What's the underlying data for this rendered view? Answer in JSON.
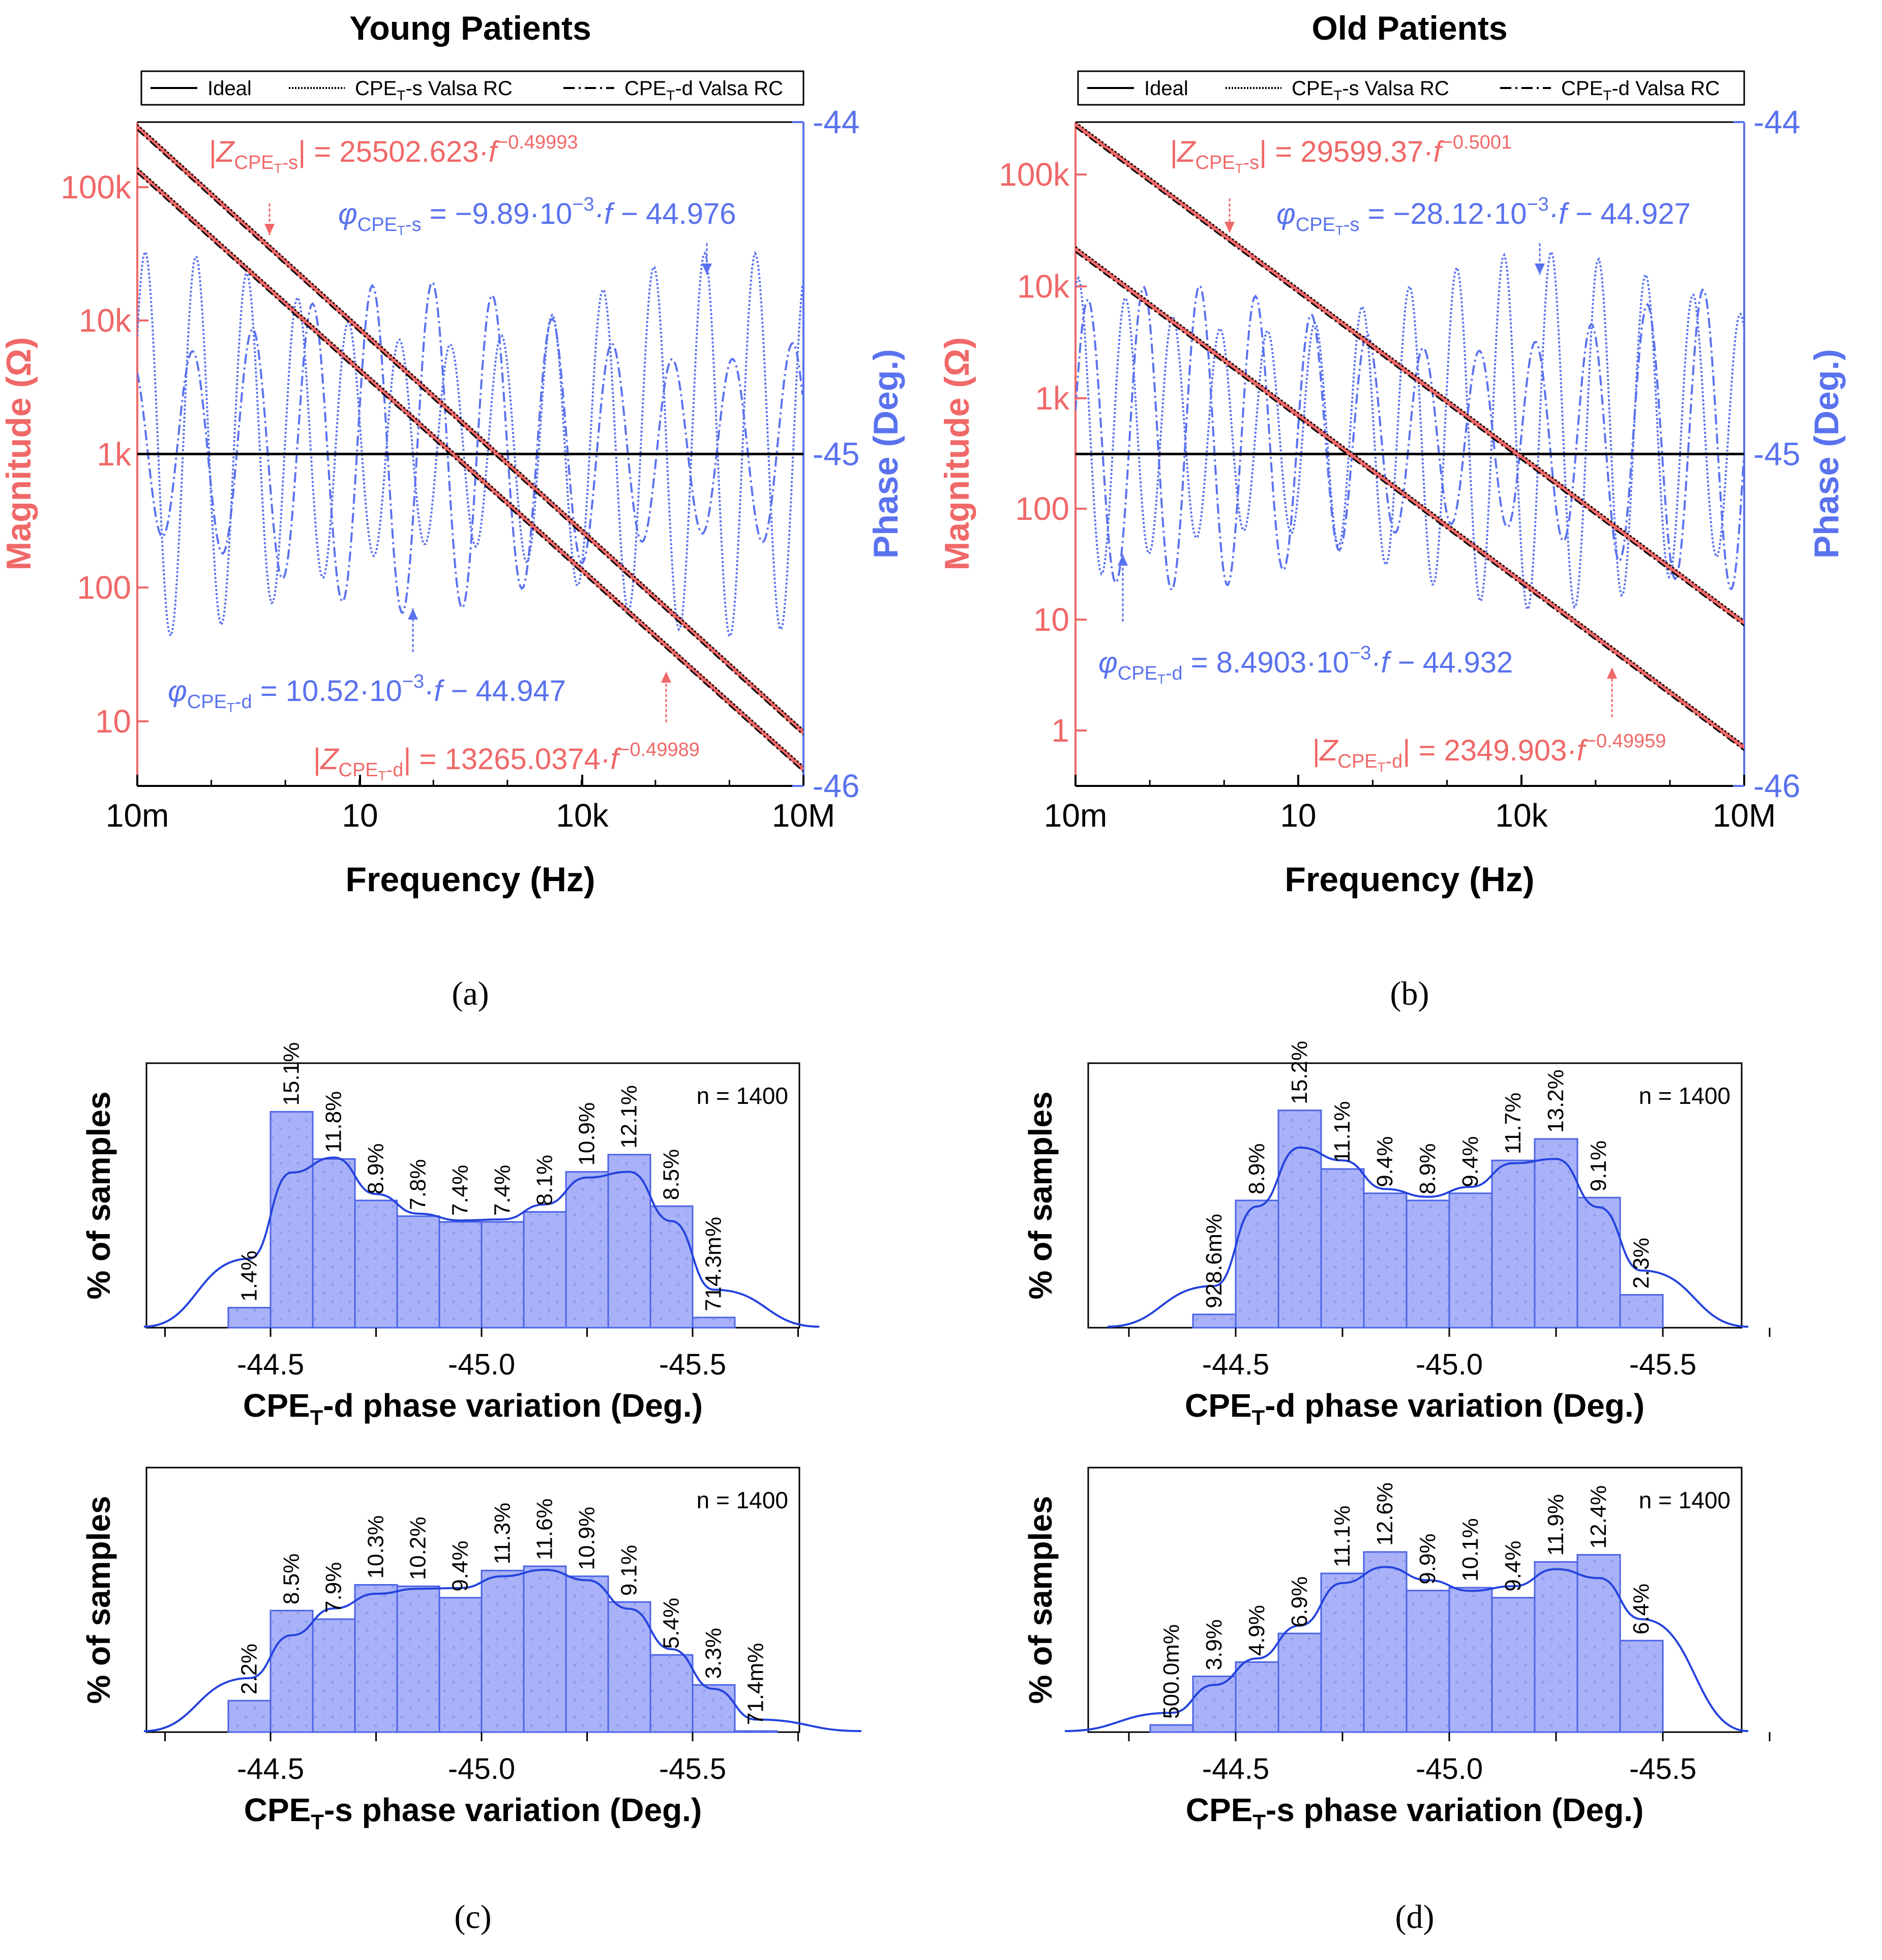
{
  "colors": {
    "magnitude": "#f06868",
    "phase": "#5a72ee",
    "ideal": "#000000",
    "bar_fill": "#a9b2f8",
    "bar_edge": "#4b63e6",
    "kde": "#2443dd"
  },
  "legend": {
    "ideal": "Ideal",
    "s_prefix": "CPE",
    "s_sub": "T",
    "s_suffix": "-s Valsa RC",
    "d_prefix": "CPE",
    "d_sub": "T",
    "d_suffix": "-d Valsa RC"
  },
  "panels": [
    {
      "id": "a",
      "caption": "(a)",
      "title": "Young Patients",
      "xlabel": "Frequency (Hz)",
      "ylabel_left": "Magnitude (Ω)",
      "ylabel_right": "Phase (Deg.)",
      "x_ticks": [
        "10m",
        "10",
        "10k",
        "10M"
      ],
      "y_left_ticks": [
        "10",
        "100",
        "1k",
        "10k",
        "100k"
      ],
      "y_right_ticks": [
        "-44",
        "-45",
        "-46"
      ],
      "ann_mag_s": {
        "coef": "25502.623",
        "exp": "−0.49993"
      },
      "ann_phase_s": {
        "slope": "−9.89",
        "intercept": "44.976"
      },
      "ann_phase_d": {
        "slope": "10.52",
        "intercept": "44.947"
      },
      "ann_mag_d": {
        "coef": "13265.0374",
        "exp": "−0.49989"
      }
    },
    {
      "id": "b",
      "caption": "(b)",
      "title": "Old Patients",
      "xlabel": "Frequency (Hz)",
      "ylabel_left": "Magnitude (Ω)",
      "ylabel_right": "Phase (Deg.)",
      "x_ticks": [
        "10m",
        "10",
        "10k",
        "10M"
      ],
      "y_left_ticks": [
        "1",
        "10",
        "100",
        "1k",
        "10k",
        "100k"
      ],
      "y_right_ticks": [
        "-44",
        "-45",
        "-46"
      ],
      "ann_mag_s": {
        "coef": "29599.37",
        "exp": "−0.5001"
      },
      "ann_phase_s": {
        "slope": "−28.12",
        "intercept": "44.927"
      },
      "ann_phase_d": {
        "slope": "8.4903",
        "intercept": "44.932"
      },
      "ann_mag_d": {
        "coef": "2349.903",
        "exp": "−0.49959"
      }
    }
  ],
  "annotation_parts": {
    "z_s_prefix": "|Z",
    "z_sub": "CPE",
    "z_subsub": "T",
    "z_s_suffix": "-s",
    "z_d_suffix": "-d",
    "z_eq": "| = ",
    "z_f": "·f",
    "phi": "φ",
    "phi_sub": "CPE",
    "phi_subsub": "T",
    "phi_s_suffix": "-s",
    "phi_d_suffix": "-d",
    "phi_eq": " = ",
    "phi_mid": "·10",
    "phi_exp": "−3",
    "phi_f": "·f − "
  },
  "hist_common": {
    "ylabel": "% of samples",
    "n_label": "n = 1400",
    "x_ticks": [
      "-44.5",
      "-45.0",
      "-45.5"
    ]
  },
  "histograms": [
    {
      "id": "c-top",
      "xlabel_prefix": "CPE",
      "xlabel_sub": "T",
      "xlabel_suffix": "-d phase variation (Deg.)",
      "labels": [
        "1.4%",
        "15.1%",
        "11.8%",
        "8.9%",
        "7.8%",
        "7.4%",
        "7.4%",
        "8.1%",
        "10.9%",
        "12.1%",
        "8.5%",
        "714.3m%"
      ]
    },
    {
      "id": "d-top",
      "xlabel_prefix": "CPE",
      "xlabel_sub": "T",
      "xlabel_suffix": "-d phase variation (Deg.)",
      "labels": [
        "928.6m%",
        "8.9%",
        "15.2%",
        "11.1%",
        "9.4%",
        "8.9%",
        "9.4%",
        "11.7%",
        "13.2%",
        "9.1%",
        "2.3%"
      ]
    },
    {
      "id": "c-bottom",
      "xlabel_prefix": "CPE",
      "xlabel_sub": "T",
      "xlabel_suffix": "-s phase variation (Deg.)",
      "labels": [
        "2.2%",
        "8.5%",
        "7.9%",
        "10.3%",
        "10.2%",
        "9.4%",
        "11.3%",
        "11.6%",
        "10.9%",
        "9.1%",
        "5.4%",
        "3.3%",
        "71.4m%"
      ]
    },
    {
      "id": "d-bottom",
      "xlabel_prefix": "CPE",
      "xlabel_sub": "T",
      "xlabel_suffix": "-s phase variation (Deg.)",
      "labels": [
        "500.0m%",
        "3.9%",
        "4.9%",
        "6.9%",
        "11.1%",
        "12.6%",
        "9.9%",
        "10.1%",
        "9.4%",
        "11.9%",
        "12.4%",
        "6.4%"
      ]
    }
  ],
  "captions_bottom": [
    "(c)",
    "(d)"
  ],
  "chart_data": [
    {
      "type": "line",
      "panel": "a",
      "x_scale": "log",
      "x_range": [
        "10m",
        "10M"
      ],
      "y_left_scale": "log",
      "y_right_range": [
        -46,
        -44
      ],
      "series": [
        {
          "name": "Ideal",
          "axis": "right",
          "equation": "-45 (constant)"
        },
        {
          "name": "CPE_T-s Valsa RC",
          "axis": "left",
          "equation": "|Z| = 25502.623·f^−0.49993"
        },
        {
          "name": "CPE_T-d Valsa RC",
          "axis": "left",
          "equation": "|Z| = 13265.0374·f^−0.49989"
        },
        {
          "name": "CPE_T-s Valsa RC",
          "axis": "right",
          "equation": "φ = −9.89·10^−3·f − 44.976"
        },
        {
          "name": "CPE_T-d Valsa RC",
          "axis": "right",
          "equation": "φ = 10.52·10^−3·f − 44.947"
        }
      ]
    },
    {
      "type": "line",
      "panel": "b",
      "x_scale": "log",
      "x_range": [
        "10m",
        "10M"
      ],
      "y_left_scale": "log",
      "y_right_range": [
        -46,
        -44
      ],
      "series": [
        {
          "name": "Ideal",
          "axis": "right",
          "equation": "-45 (constant)"
        },
        {
          "name": "CPE_T-s Valsa RC",
          "axis": "left",
          "equation": "|Z| = 29599.37·f^−0.5001"
        },
        {
          "name": "CPE_T-d Valsa RC",
          "axis": "left",
          "equation": "|Z| = 2349.903·f^−0.49959"
        },
        {
          "name": "CPE_T-s Valsa RC",
          "axis": "right",
          "equation": "φ = −28.12·10^−3·f − 44.927"
        },
        {
          "name": "CPE_T-d Valsa RC",
          "axis": "right",
          "equation": "φ = 8.4903·10^−3·f − 44.932"
        }
      ]
    },
    {
      "type": "bar",
      "panel": "c-top",
      "x_range": [
        -44.25,
        -45.75
      ],
      "bin_width": 0.1,
      "first_bin_start": -44.4,
      "values": [
        1.4,
        15.1,
        11.8,
        8.9,
        7.8,
        7.4,
        7.4,
        8.1,
        10.9,
        12.1,
        8.5,
        0.7143
      ]
    },
    {
      "type": "bar",
      "panel": "d-top",
      "x_range": [
        -44.25,
        -45.75
      ],
      "bin_width": 0.1,
      "first_bin_start": -44.4,
      "values": [
        0.9286,
        8.9,
        15.2,
        11.1,
        9.4,
        8.9,
        9.4,
        11.7,
        13.2,
        9.1,
        2.3
      ]
    },
    {
      "type": "bar",
      "panel": "c-bottom",
      "x_range": [
        -44.25,
        -45.75
      ],
      "bin_width": 0.1,
      "first_bin_start": -44.4,
      "values": [
        2.2,
        8.5,
        7.9,
        10.3,
        10.2,
        9.4,
        11.3,
        11.6,
        10.9,
        9.1,
        5.4,
        3.3,
        0.0714
      ]
    },
    {
      "type": "bar",
      "panel": "d-bottom",
      "x_range": [
        -44.25,
        -45.75
      ],
      "bin_width": 0.1,
      "first_bin_start": -44.3,
      "values": [
        0.5,
        3.9,
        4.9,
        6.9,
        11.1,
        12.6,
        9.9,
        10.1,
        9.4,
        11.9,
        12.4,
        6.4
      ]
    }
  ]
}
